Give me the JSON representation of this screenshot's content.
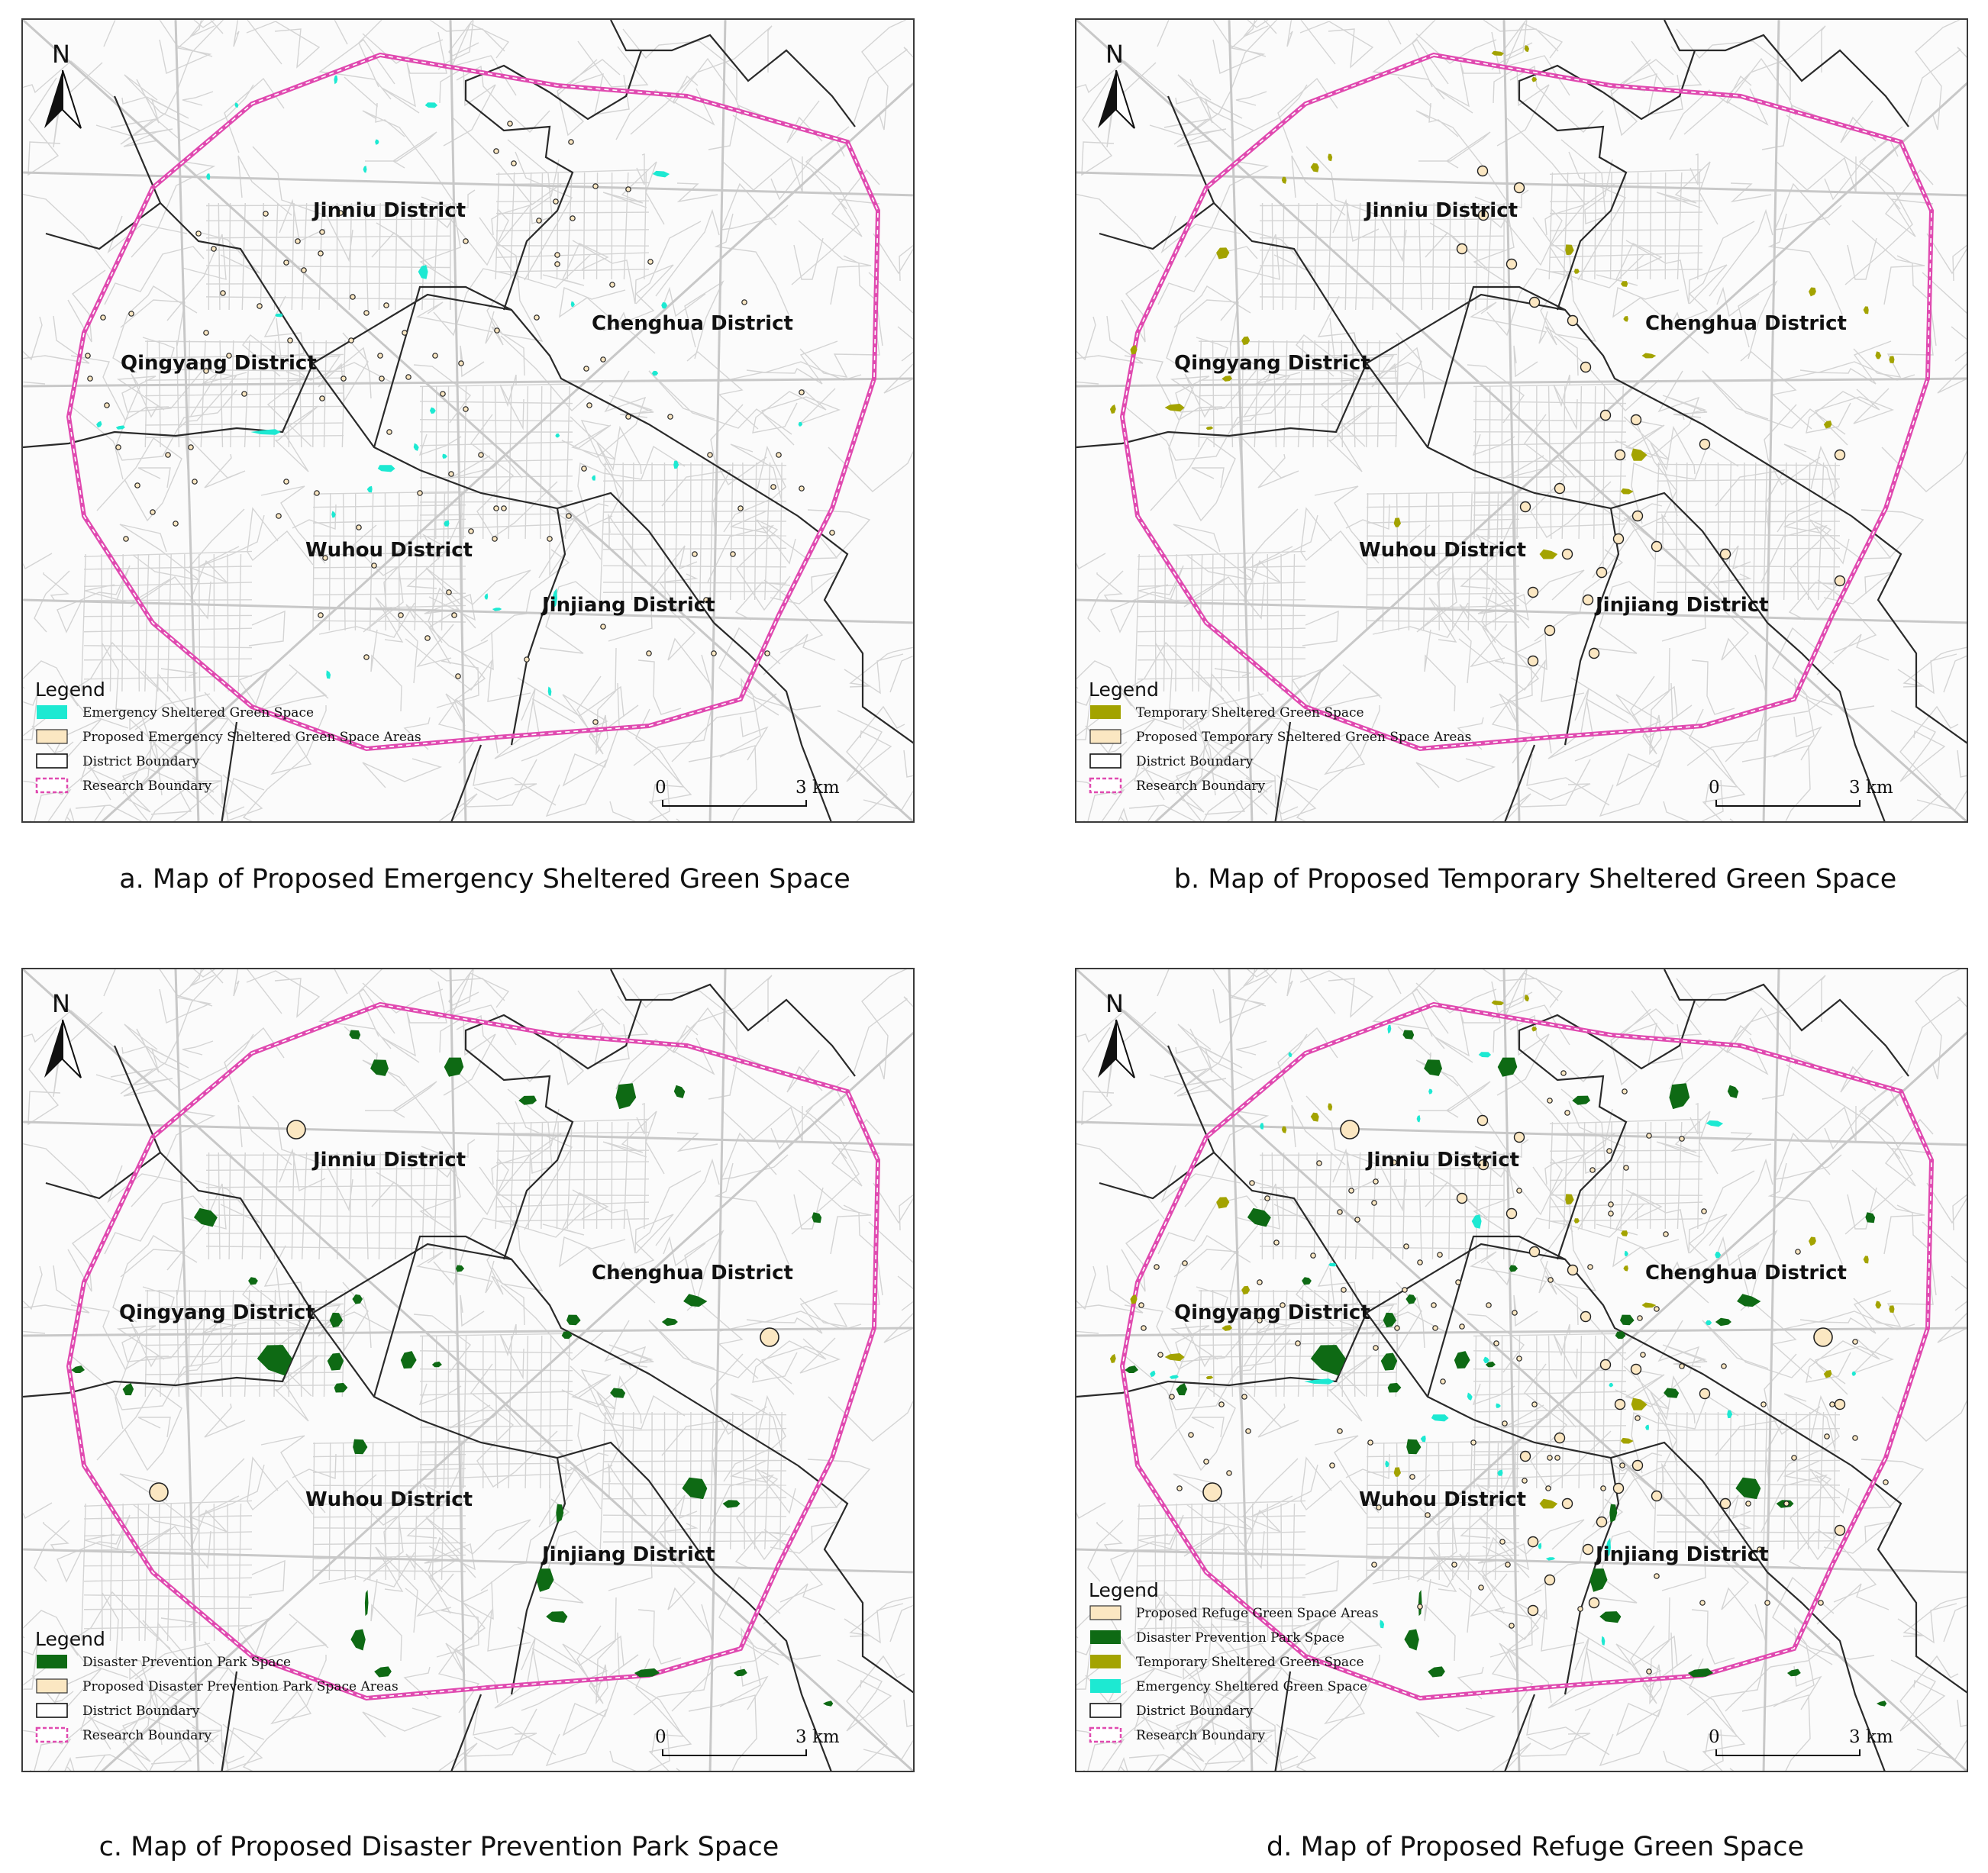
{
  "colors": {
    "emergency": "#1de9d2",
    "temporary": "#a3a300",
    "park": "#0e6a14",
    "proposed_fill": "#fbe7c2",
    "research_boundary": "#e04ab0",
    "district_boundary": "#2a2a2a",
    "roads": "#d4d4d4"
  },
  "scale_bar": {
    "start": "0",
    "end": "3 km"
  },
  "north_label": "N",
  "district_labels": {
    "jinniu": "Jinniu District",
    "chenghua": "Chenghua District",
    "qingyang": "Qingyang District",
    "wuhou": "Wuhou District",
    "jinjiang": "Jinjiang District"
  },
  "panels": [
    {
      "caption": "a. Map of Proposed Emergency Sheltered Green Space",
      "legend_title": "Legend",
      "legend": [
        {
          "label": "Emergency Sheltered Green Space",
          "swatch": "emergency"
        },
        {
          "label": "Proposed Emergency Sheltered Green Space Areas",
          "swatch": "proposed"
        },
        {
          "label": "District Boundary",
          "swatch": "district"
        },
        {
          "label": "Research Boundary",
          "swatch": "research"
        }
      ]
    },
    {
      "caption": "b. Map of Proposed Temporary Sheltered Green Space",
      "legend_title": "Legend",
      "legend": [
        {
          "label": "Temporary Sheltered Green Space",
          "swatch": "temporary"
        },
        {
          "label": "Proposed Temporary Sheltered Green Space Areas",
          "swatch": "proposed"
        },
        {
          "label": "District Boundary",
          "swatch": "district"
        },
        {
          "label": "Research Boundary",
          "swatch": "research"
        }
      ]
    },
    {
      "caption": "c. Map of Proposed Disaster Prevention Park Space",
      "legend_title": "Legend",
      "legend": [
        {
          "label": "Disaster Prevention Park Space",
          "swatch": "park"
        },
        {
          "label": "Proposed Disaster Prevention Park Space Areas",
          "swatch": "proposed"
        },
        {
          "label": "District Boundary",
          "swatch": "district"
        },
        {
          "label": "Research Boundary",
          "swatch": "research"
        }
      ]
    },
    {
      "caption": "d. Map of Proposed Refuge Green Space",
      "legend_title": "Legend",
      "legend": [
        {
          "label": "Proposed Refuge Green Space Areas",
          "swatch": "proposed"
        },
        {
          "label": "Disaster Prevention Park Space",
          "swatch": "park"
        },
        {
          "label": "Temporary Sheltered Green Space",
          "swatch": "temporary"
        },
        {
          "label": "Emergency Sheltered Green Space",
          "swatch": "emergency"
        },
        {
          "label": "District Boundary",
          "swatch": "district"
        },
        {
          "label": "Research Boundary",
          "swatch": "research"
        }
      ]
    }
  ]
}
